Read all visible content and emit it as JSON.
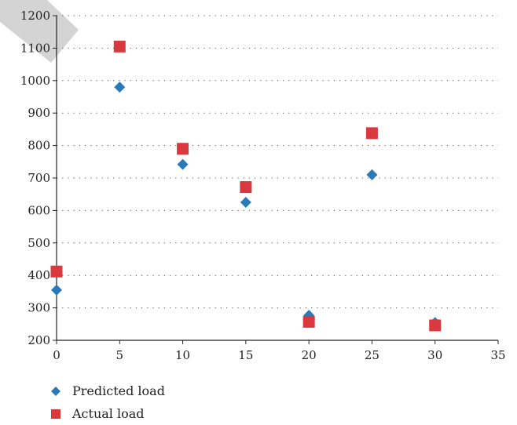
{
  "chart_data": {
    "type": "scatter",
    "title": "",
    "xlabel": "",
    "ylabel": "",
    "xlim": [
      0,
      35
    ],
    "ylim": [
      200,
      1200
    ],
    "xticks": [
      0,
      5,
      10,
      15,
      20,
      25,
      30,
      35
    ],
    "yticks": [
      200,
      300,
      400,
      500,
      600,
      700,
      800,
      900,
      1000,
      1100,
      1200
    ],
    "grid": "horizontal-dotted",
    "legend_position": "bottom-left",
    "series": [
      {
        "name": "Predicted load",
        "marker": "diamond",
        "color": "#2a7ab8",
        "x": [
          0,
          5,
          10,
          15,
          20,
          25,
          30
        ],
        "y": [
          355,
          980,
          742,
          625,
          277,
          710,
          255
        ]
      },
      {
        "name": "Actual load",
        "marker": "square",
        "color": "#d9393e",
        "x": [
          0,
          5,
          10,
          15,
          20,
          25,
          30
        ],
        "y": [
          412,
          1105,
          790,
          672,
          257,
          838,
          246
        ]
      }
    ]
  }
}
